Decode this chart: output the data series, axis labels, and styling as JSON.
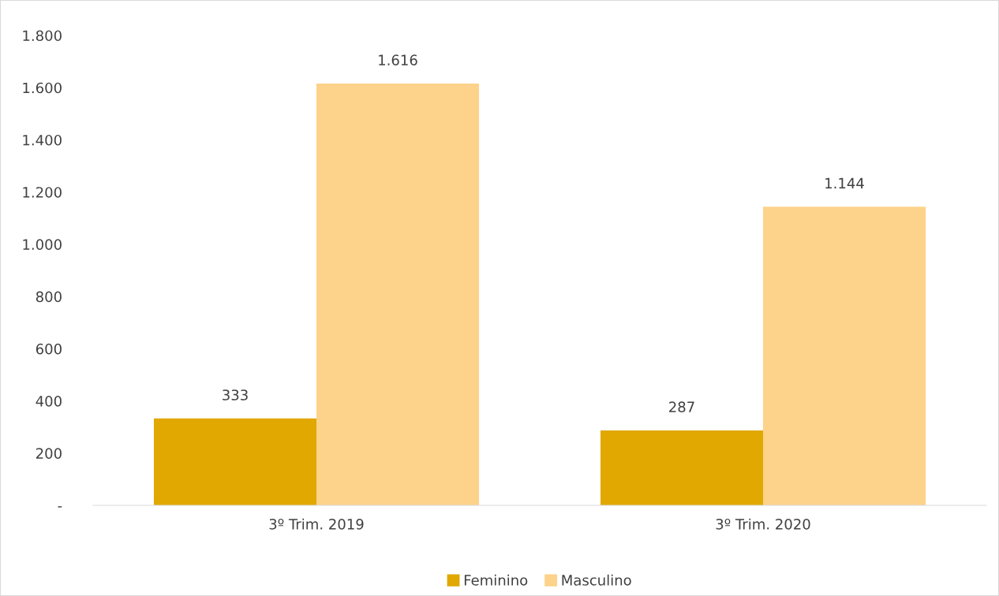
{
  "chart_data": {
    "type": "bar",
    "categories": [
      "3º Trim. 2019",
      "3º Trim. 2020"
    ],
    "series": [
      {
        "name": "Feminino",
        "color": "#e0a800",
        "values": [
          333,
          287
        ],
        "value_labels": [
          "333",
          "287"
        ]
      },
      {
        "name": "Masculino",
        "color": "#fdd28a",
        "values": [
          1616,
          1144
        ],
        "value_labels": [
          "1.616",
          "1.144"
        ]
      }
    ],
    "ylim": [
      0,
      1800
    ],
    "yticks": [
      {
        "value": 0,
        "label": "-"
      },
      200,
      400,
      600,
      800,
      {
        "value": 1000,
        "label": "1.000"
      },
      {
        "value": 1200,
        "label": "1.200"
      },
      {
        "value": 1400,
        "label": "1.400"
      },
      {
        "value": 1600,
        "label": "1.600"
      },
      {
        "value": 1800,
        "label": "1.800"
      }
    ],
    "grid": false,
    "legend": "bottom"
  }
}
